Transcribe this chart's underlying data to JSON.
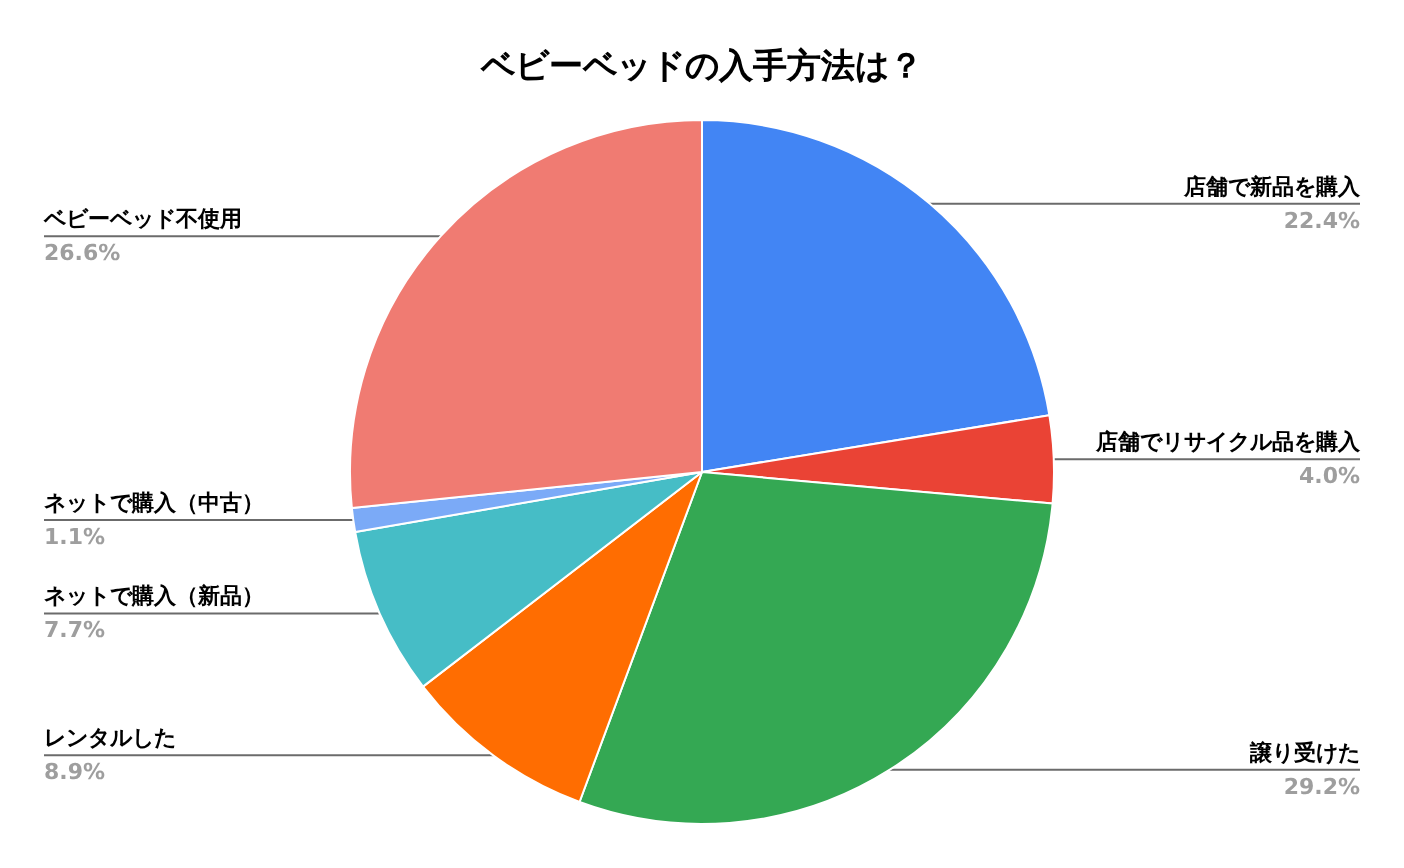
{
  "chart_data": {
    "type": "pie",
    "title": "ベビーベッドの入手方法は？",
    "categories": [
      "店舗で新品を購入",
      "店舗でリサイクル品を購入",
      "譲り受けた",
      "レンタルした",
      "ネットで購入（新品）",
      "ネットで購入（中古）",
      "ベビーベッド不使用"
    ],
    "values": [
      22.4,
      4.0,
      29.2,
      8.9,
      7.7,
      1.1,
      26.6
    ],
    "colors": [
      "#4285f4",
      "#ea4335",
      "#34a853",
      "#ff6d01",
      "#46bdc6",
      "#7baaf7",
      "#f07b72"
    ],
    "value_labels": [
      "22.4%",
      "4.0%",
      "29.2%",
      "8.9%",
      "7.7%",
      "1.1%",
      "26.6%"
    ],
    "legend": false
  }
}
